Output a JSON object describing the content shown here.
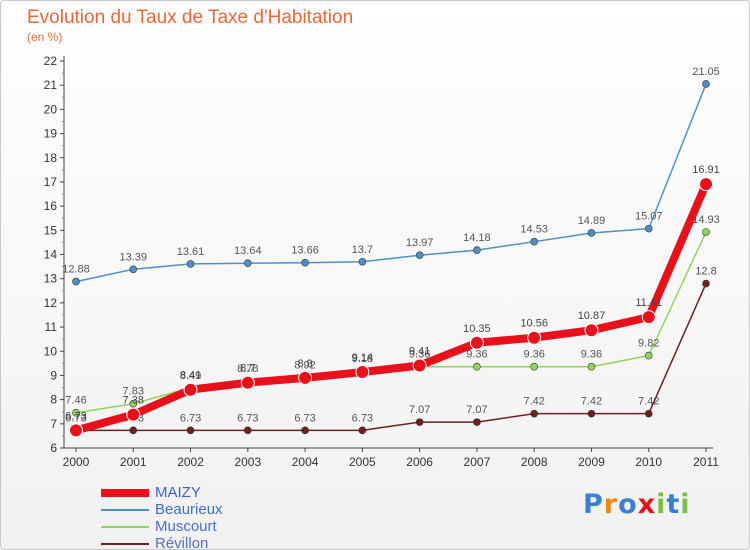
{
  "title": "Evolution du Taux de Taxe d'Habitation",
  "subtitle": "(en %)",
  "logo_text": "Proxiti",
  "chart_data": {
    "type": "line",
    "title": "Evolution du Taux de Taxe d'Habitation",
    "ylabel": "(en %)",
    "xlabel": "",
    "x": [
      "2000",
      "2001",
      "2002",
      "2003",
      "2004",
      "2005",
      "2006",
      "2007",
      "2008",
      "2009",
      "2010",
      "2011"
    ],
    "ylim": [
      6,
      22
    ],
    "yticks": [
      6,
      7,
      8,
      9,
      10,
      11,
      12,
      13,
      14,
      15,
      16,
      17,
      18,
      19,
      20,
      21,
      22
    ],
    "grid": false,
    "legend_position": "bottom-left",
    "series": [
      {
        "name": "Beaurieux",
        "color": "#4f8fc6",
        "values": [
          12.88,
          13.39,
          13.61,
          13.64,
          13.66,
          13.7,
          13.97,
          14.18,
          14.53,
          14.89,
          15.07,
          21.05
        ],
        "labels": [
          "12.88",
          "13.39",
          "13.61",
          "13.64",
          "13.66",
          "13.7",
          "13.97",
          "14.18",
          "14.53",
          "14.89",
          "15.07",
          "21.05"
        ]
      },
      {
        "name": "Muscourt",
        "color": "#8fd65a",
        "values": [
          7.46,
          7.83,
          8.49,
          8.78,
          8.92,
          9.18,
          9.36,
          9.36,
          9.36,
          9.36,
          9.82,
          14.93
        ],
        "labels": [
          "7.46",
          "7.83",
          "8.49",
          "8.78",
          "8.92",
          "9.18",
          "9.36",
          "9.36",
          "9.36",
          "9.36",
          "9.82",
          "14.93"
        ]
      },
      {
        "name": "Révillon",
        "color": "#6e1f1f",
        "values": [
          6.73,
          6.73,
          6.73,
          6.73,
          6.73,
          6.73,
          7.07,
          7.07,
          7.42,
          7.42,
          7.42,
          12.8
        ],
        "labels": [
          "6.73",
          "6.73",
          "6.73",
          "6.73",
          "6.73",
          "6.73",
          "7.07",
          "7.07",
          "7.42",
          "7.42",
          "7.42",
          "12.8"
        ]
      },
      {
        "name": "MAIZY",
        "color": "#e8101a",
        "values": [
          6.73,
          7.38,
          8.41,
          8.7,
          8.9,
          9.14,
          9.41,
          10.35,
          10.56,
          10.87,
          11.41,
          16.91
        ],
        "labels": [
          "6.73",
          "7.38",
          "8.41",
          "8.7",
          "8.9",
          "9.14",
          "9.41",
          "10.35",
          "10.56",
          "10.87",
          "11.41",
          "16.91"
        ]
      }
    ],
    "legend": [
      {
        "name": "MAIZY",
        "color": "#e8101a",
        "width": 8
      },
      {
        "name": "Beaurieux",
        "color": "#4f8fc6",
        "width": 2
      },
      {
        "name": "Muscourt",
        "color": "#8fd65a",
        "width": 2
      },
      {
        "name": "Révillon",
        "color": "#6e1f1f",
        "width": 2
      }
    ]
  }
}
